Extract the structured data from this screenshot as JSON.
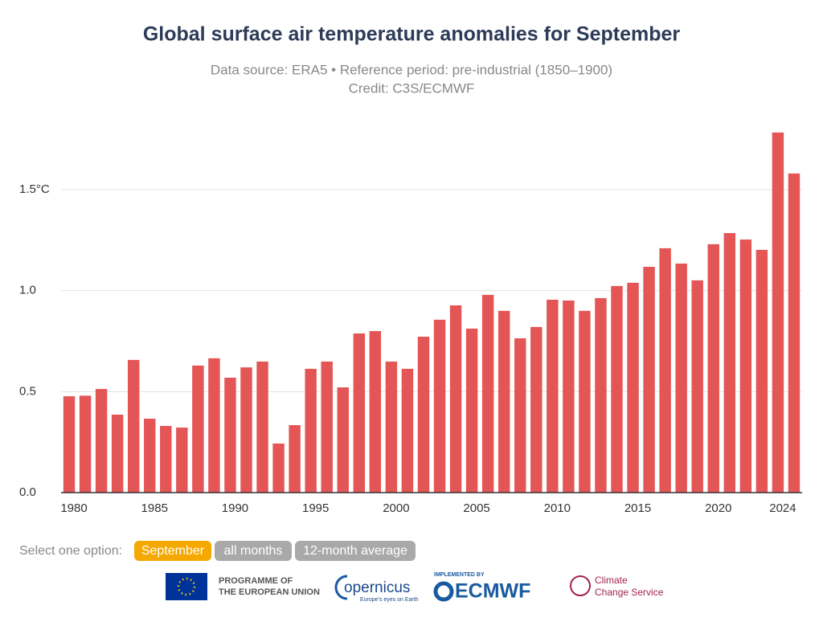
{
  "chart_data": {
    "type": "bar",
    "title": "Global surface air temperature anomalies for September",
    "subtitle": "Data source: ERA5 • Reference period: pre-industrial (1850–1900)",
    "credit": "Credit: C3S/ECMWF",
    "categories": [
      "1980",
      null,
      null,
      null,
      null,
      "1985",
      null,
      null,
      null,
      null,
      "1990",
      null,
      null,
      null,
      null,
      "1995",
      null,
      null,
      null,
      null,
      "2000",
      null,
      null,
      null,
      null,
      "2005",
      null,
      null,
      null,
      null,
      "2010",
      null,
      null,
      null,
      null,
      "2015",
      null,
      null,
      null,
      null,
      "2020",
      null,
      null,
      null,
      "2024",
      null
    ],
    "values": [
      0.477,
      0.48,
      0.513,
      0.386,
      0.657,
      0.366,
      0.33,
      0.322,
      0.629,
      0.665,
      0.569,
      0.62,
      0.649,
      0.243,
      0.334,
      0.613,
      0.649,
      0.521,
      0.788,
      0.8,
      0.649,
      0.613,
      0.772,
      0.856,
      0.927,
      0.812,
      0.979,
      0.9,
      0.764,
      0.82,
      0.955,
      0.951,
      0.9,
      0.963,
      1.023,
      1.039,
      1.118,
      1.21,
      1.134,
      1.051,
      1.23,
      1.285,
      1.253,
      1.202,
      1.783,
      1.58
    ],
    "color": "#e45656",
    "ylim": [
      0,
      1.8
    ],
    "yticks": [
      {
        "value": 0,
        "label": "0.0"
      },
      0.5,
      {
        "value": 1,
        "label": "1.0"
      },
      {
        "value": 1.5,
        "label": "1.5°C"
      }
    ],
    "grid": true
  },
  "controls": {
    "label": "Select one option:",
    "options": [
      "September",
      "all months",
      "12-month average"
    ]
  },
  "logos": {
    "eu": [
      "PROGRAMME OF",
      "THE EUROPEAN UNION"
    ],
    "copernicus": {
      "name": "opernicus",
      "tagline": "Europe's eyes on Earth"
    },
    "ecmwf": {
      "caption": "IMPLEMENTED BY",
      "name": "ECMWF"
    },
    "c3s": [
      "Climate",
      "Change Service"
    ]
  }
}
